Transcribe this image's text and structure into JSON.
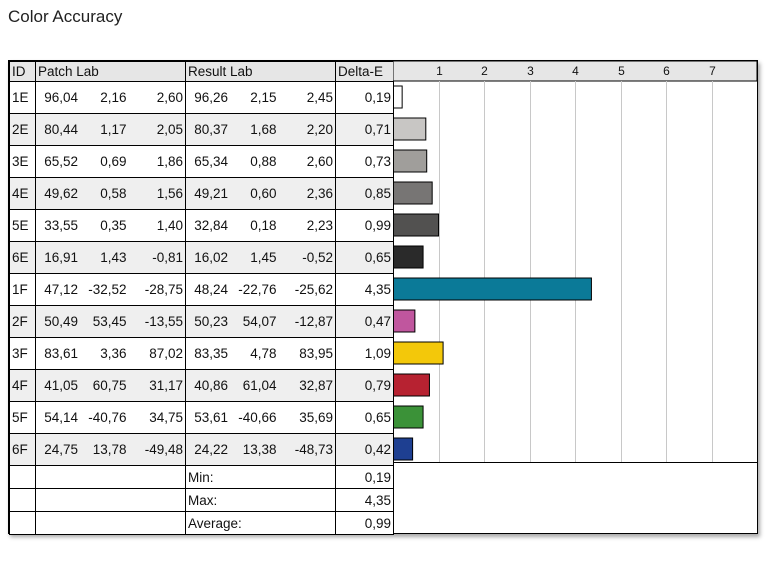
{
  "page": {
    "title": "Color Accuracy"
  },
  "table": {
    "headers": {
      "id": "ID",
      "patch": "Patch Lab",
      "result": "Result Lab",
      "delta": "Delta-E"
    },
    "rows": [
      {
        "id": "1E",
        "patch": [
          "96,04",
          "2,16",
          "2,60"
        ],
        "result": [
          "96,26",
          "2,15",
          "2,45"
        ],
        "delta": "0,19",
        "color": "#ffffff"
      },
      {
        "id": "2E",
        "patch": [
          "80,44",
          "1,17",
          "2,05"
        ],
        "result": [
          "80,37",
          "1,68",
          "2,20"
        ],
        "delta": "0,71",
        "color": "#c8c6c4"
      },
      {
        "id": "3E",
        "patch": [
          "65,52",
          "0,69",
          "1,86"
        ],
        "result": [
          "65,34",
          "0,88",
          "2,60"
        ],
        "delta": "0,73",
        "color": "#a09e9b"
      },
      {
        "id": "4E",
        "patch": [
          "49,62",
          "0,58",
          "1,56"
        ],
        "result": [
          "49,21",
          "0,60",
          "2,36"
        ],
        "delta": "0,85",
        "color": "#777574"
      },
      {
        "id": "5E",
        "patch": [
          "33,55",
          "0,35",
          "1,40"
        ],
        "result": [
          "32,84",
          "0,18",
          "2,23"
        ],
        "delta": "0,99",
        "color": "#525150"
      },
      {
        "id": "6E",
        "patch": [
          "16,91",
          "1,43",
          "-0,81"
        ],
        "result": [
          "16,02",
          "1,45",
          "-0,52"
        ],
        "delta": "0,65",
        "color": "#2a2a2a"
      },
      {
        "id": "1F",
        "patch": [
          "47,12",
          "-32,52",
          "-28,75"
        ],
        "result": [
          "48,24",
          "-22,76",
          "-25,62"
        ],
        "delta": "4,35",
        "color": "#0b7a98"
      },
      {
        "id": "2F",
        "patch": [
          "50,49",
          "53,45",
          "-13,55"
        ],
        "result": [
          "50,23",
          "54,07",
          "-12,87"
        ],
        "delta": "0,47",
        "color": "#c0569e"
      },
      {
        "id": "3F",
        "patch": [
          "83,61",
          "3,36",
          "87,02"
        ],
        "result": [
          "83,35",
          "4,78",
          "83,95"
        ],
        "delta": "1,09",
        "color": "#f3c80a"
      },
      {
        "id": "4F",
        "patch": [
          "41,05",
          "60,75",
          "31,17"
        ],
        "result": [
          "40,86",
          "61,04",
          "32,87"
        ],
        "delta": "0,79",
        "color": "#b72231"
      },
      {
        "id": "5F",
        "patch": [
          "54,14",
          "-40,76",
          "34,75"
        ],
        "result": [
          "53,61",
          "-40,66",
          "35,69"
        ],
        "delta": "0,65",
        "color": "#3b9238"
      },
      {
        "id": "6F",
        "patch": [
          "24,75",
          "13,78",
          "-49,48"
        ],
        "result": [
          "24,22",
          "13,38",
          "-48,73"
        ],
        "delta": "0,42",
        "color": "#1e3f91"
      }
    ],
    "summary": [
      {
        "label": "Min:",
        "value": "0,19"
      },
      {
        "label": "Max:",
        "value": "4,35"
      },
      {
        "label": "Average:",
        "value": "0,99"
      }
    ]
  },
  "chart_data": {
    "type": "bar",
    "orientation": "horizontal",
    "categories": [
      "1E",
      "2E",
      "3E",
      "4E",
      "5E",
      "6E",
      "1F",
      "2F",
      "3F",
      "4F",
      "5F",
      "6F"
    ],
    "values": [
      0.19,
      0.71,
      0.73,
      0.85,
      0.99,
      0.65,
      4.35,
      0.47,
      1.09,
      0.79,
      0.65,
      0.42
    ],
    "colors": [
      "#ffffff",
      "#c8c6c4",
      "#a09e9b",
      "#777574",
      "#525150",
      "#2a2a2a",
      "#0b7a98",
      "#c0569e",
      "#f3c80a",
      "#b72231",
      "#3b9238",
      "#1e3f91"
    ],
    "xticks": [
      "1",
      "2",
      "3",
      "4",
      "5",
      "6",
      "7"
    ],
    "xlim": [
      0,
      8
    ],
    "grid": true,
    "xlabel": "",
    "ylabel": "",
    "title": ""
  }
}
